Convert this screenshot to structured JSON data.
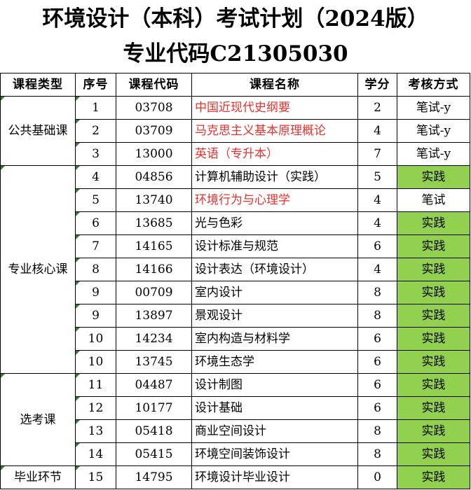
{
  "title_line1": "环境设计（本科）考试计划（2024版）",
  "title_line2": "专业代码C21305030",
  "headers": [
    "课程类型",
    "序号",
    "课程代码",
    "课程名称",
    "学分",
    "考核方式"
  ],
  "categories": [
    "公共基础课",
    "专业核心课",
    "选考课",
    "毕业环节"
  ],
  "rows": [
    {
      "no": "1",
      "code": "03708",
      "name": "中国近现代史纲要",
      "credit": "2",
      "exam": "笔试-y"
    },
    {
      "no": "2",
      "code": "03709",
      "name": "马克思主义基本原理概论",
      "credit": "4",
      "exam": "笔试-y"
    },
    {
      "no": "3",
      "code": "13000",
      "name": "英语（专升本）",
      "credit": "7",
      "exam": "笔试-y"
    },
    {
      "no": "4",
      "code": "04856",
      "name": "计算机辅助设计（实践）",
      "credit": "5",
      "exam": "实践"
    },
    {
      "no": "5",
      "code": "13740",
      "name": "环境行为与心理学",
      "credit": "4",
      "exam": "笔试"
    },
    {
      "no": "6",
      "code": "13685",
      "name": "光与色彩",
      "credit": "4",
      "exam": "实践"
    },
    {
      "no": "7",
      "code": "14165",
      "name": "设计标准与规范",
      "credit": "6",
      "exam": "实践"
    },
    {
      "no": "8",
      "code": "14166",
      "name": "设计表达（环境设计）",
      "credit": "4",
      "exam": "实践"
    },
    {
      "no": "9",
      "code": "00709",
      "name": "室内设计",
      "credit": "8",
      "exam": "实践"
    },
    {
      "no": "9",
      "code": "13897",
      "name": "景观设计",
      "credit": "8",
      "exam": "实践"
    },
    {
      "no": "10",
      "code": "14234",
      "name": "室内构造与材料学",
      "credit": "6",
      "exam": "实践"
    },
    {
      "no": "10",
      "code": "13745",
      "name": "环境生态学",
      "credit": "6",
      "exam": "实践"
    },
    {
      "no": "11",
      "code": "04487",
      "name": "设计制图",
      "credit": "6",
      "exam": "实践"
    },
    {
      "no": "12",
      "code": "10177",
      "name": "设计基础",
      "credit": "6",
      "exam": "实践"
    },
    {
      "no": "13",
      "code": "05418",
      "name": "商业空间设计",
      "credit": "8",
      "exam": "实践"
    },
    {
      "no": "14",
      "code": "05415",
      "name": "环境空间装饰设计",
      "credit": "8",
      "exam": "实践"
    },
    {
      "no": "15",
      "code": "14795",
      "name": "环境设计毕业设计",
      "credit": "0",
      "exam": "实践"
    }
  ],
  "colors": {
    "red_text": "#e8322e",
    "green_fill": "#92d050"
  }
}
